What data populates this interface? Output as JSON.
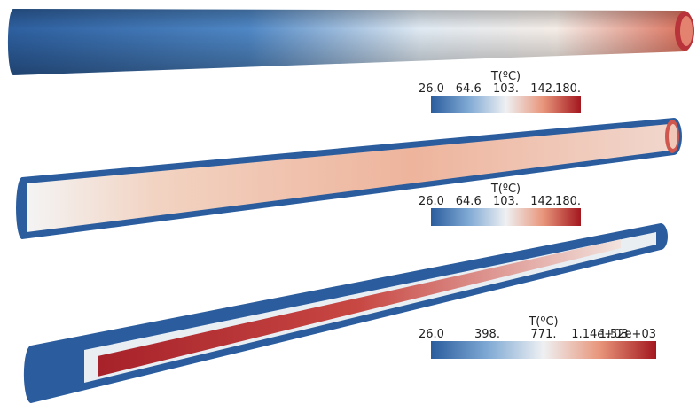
{
  "panels": [
    {
      "colorbar": {
        "title": "T(ºC)",
        "ticks": [
          "26.0",
          "64.6",
          "103.",
          "142.",
          "180."
        ]
      }
    },
    {
      "colorbar": {
        "title": "T(ºC)",
        "ticks": [
          "26.0",
          "64.6",
          "103.",
          "142.",
          "180."
        ]
      }
    },
    {
      "colorbar": {
        "title": "T(ºC)",
        "ticks": [
          "26.0",
          "398.",
          "771.",
          "1.14e+03",
          "1.52e+03"
        ]
      }
    }
  ]
}
